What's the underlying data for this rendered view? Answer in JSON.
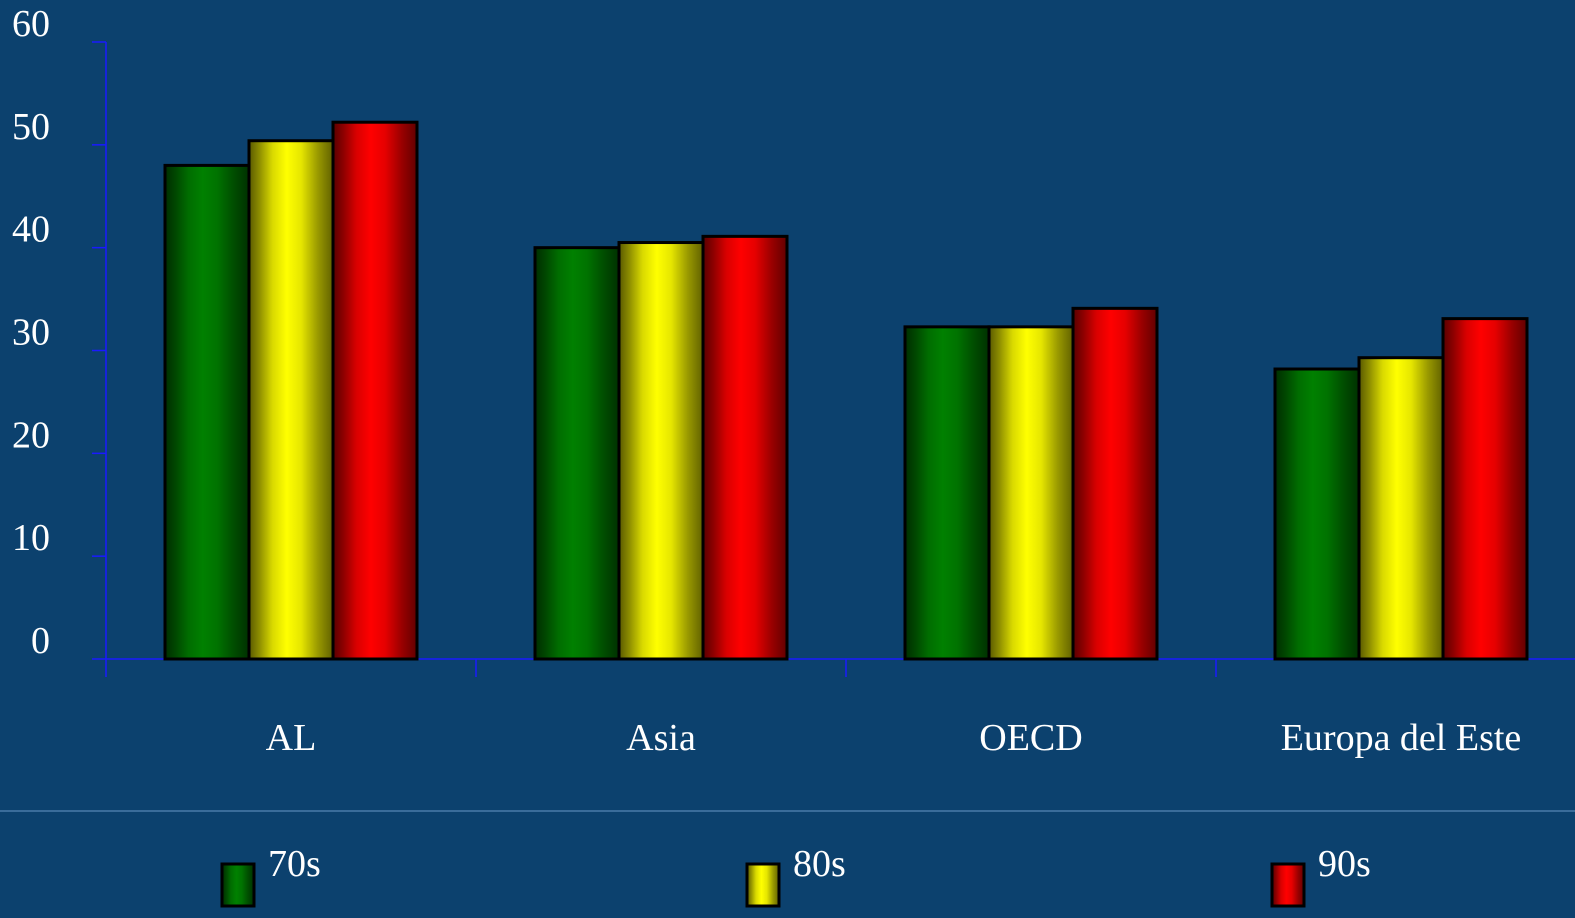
{
  "chart_data": {
    "type": "bar",
    "title": "",
    "xlabel": "",
    "ylabel": "",
    "ylim": [
      0,
      60
    ],
    "yticks": [
      0,
      10,
      20,
      30,
      40,
      50,
      60
    ],
    "categories": [
      "AL",
      "Asia",
      "OECD",
      "Europa del Este"
    ],
    "series": [
      {
        "name": "70s",
        "values": [
          48,
          40,
          32.3,
          28.2
        ],
        "color": "#008000"
      },
      {
        "name": "80s",
        "values": [
          50.4,
          40.5,
          32.3,
          29.3
        ],
        "color": "#ffff00"
      },
      {
        "name": "90s",
        "values": [
          52.2,
          41.1,
          34.1,
          33.1
        ],
        "color": "#ff0000"
      }
    ],
    "legend_position": "bottom",
    "grid": false
  },
  "colors": {
    "background": "#0c416e",
    "axis": "#1a1aff",
    "separator": "#4a7aa8",
    "text": "#ffffff"
  }
}
